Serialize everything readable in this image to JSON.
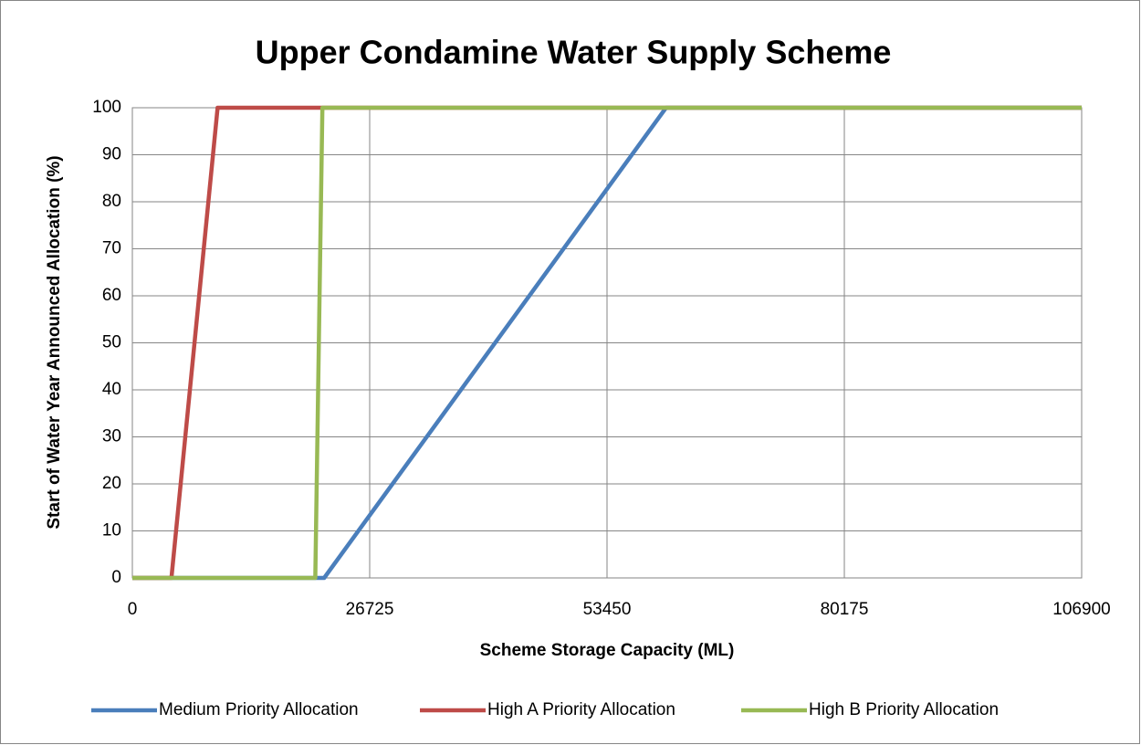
{
  "chart_data": {
    "type": "line",
    "title": "Upper Condamine Water Supply Scheme",
    "x_label": "Scheme Storage Capacity (ML)",
    "y_label": "Start of Water Year Announced Allocation (%)",
    "series": [
      {
        "name": "Medium Priority Allocation",
        "color": "#4a7ebb",
        "x": [
          0,
          21600,
          60100,
          106900
        ],
        "values": [
          0,
          0,
          100,
          100
        ]
      },
      {
        "name": "High A Priority Allocation",
        "color": "#be4b48",
        "x": [
          0,
          4400,
          9600,
          106900
        ],
        "values": [
          0,
          0,
          100,
          100
        ]
      },
      {
        "name": "High B Priority Allocation",
        "color": "#98b954",
        "x": [
          0,
          20600,
          21400,
          106900
        ],
        "values": [
          0,
          0,
          100,
          100
        ]
      }
    ],
    "xlim": [
      0,
      106900
    ],
    "xticks": [
      0,
      26725,
      53450,
      80175,
      106900
    ],
    "ylim": [
      0,
      100
    ],
    "yticks": [
      0,
      10,
      20,
      30,
      40,
      50,
      60,
      70,
      80,
      90,
      100
    ],
    "grid": true,
    "legend": "bottom"
  }
}
